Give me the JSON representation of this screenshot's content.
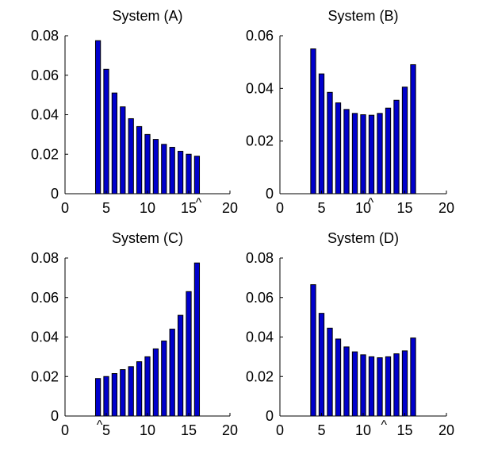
{
  "figure_title": "",
  "colors": {
    "bar_fill": "#0000cc",
    "bar_edge": "#000000",
    "axis": "#000000",
    "background": "#ffffff"
  },
  "chart_data": [
    {
      "type": "bar",
      "title": "System (A)",
      "xlabel": "",
      "ylabel": "",
      "x": [
        4,
        5,
        6,
        7,
        8,
        9,
        10,
        11,
        12,
        13,
        14,
        15,
        16
      ],
      "values": [
        0.0775,
        0.063,
        0.051,
        0.044,
        0.038,
        0.034,
        0.03,
        0.0275,
        0.025,
        0.0235,
        0.0215,
        0.02,
        0.019
      ],
      "xlim": [
        0,
        20
      ],
      "ylim": [
        0,
        0.08
      ],
      "xticks": [
        0,
        5,
        10,
        15,
        20
      ],
      "xtick_labels": [
        "0",
        "5",
        "10",
        "15",
        "20"
      ],
      "yticks": [
        0,
        0.02,
        0.04,
        0.06,
        0.08
      ],
      "ytick_labels": [
        "0",
        "0.02",
        "0.04",
        "0.06",
        "0.08"
      ],
      "marker": {
        "symbol": "^",
        "x": 16.2
      },
      "grid": false,
      "legend": "none"
    },
    {
      "type": "bar",
      "title": "System (B)",
      "xlabel": "",
      "ylabel": "",
      "x": [
        4,
        5,
        6,
        7,
        8,
        9,
        10,
        11,
        12,
        13,
        14,
        15,
        16
      ],
      "values": [
        0.055,
        0.0455,
        0.0385,
        0.0345,
        0.032,
        0.0305,
        0.03,
        0.0298,
        0.0305,
        0.0325,
        0.0355,
        0.0405,
        0.049
      ],
      "xlim": [
        0,
        20
      ],
      "ylim": [
        0,
        0.06
      ],
      "xticks": [
        0,
        5,
        10,
        15,
        20
      ],
      "xtick_labels": [
        "0",
        "5",
        "10",
        "15",
        "20"
      ],
      "yticks": [
        0,
        0.02,
        0.04,
        0.06
      ],
      "ytick_labels": [
        "0",
        "0.02",
        "0.04",
        "0.06"
      ],
      "marker": {
        "symbol": "^",
        "x": 10.9
      },
      "grid": false,
      "legend": "none"
    },
    {
      "type": "bar",
      "title": "System (C)",
      "xlabel": "",
      "ylabel": "",
      "x": [
        4,
        5,
        6,
        7,
        8,
        9,
        10,
        11,
        12,
        13,
        14,
        15,
        16
      ],
      "values": [
        0.019,
        0.02,
        0.0215,
        0.0235,
        0.025,
        0.0275,
        0.03,
        0.034,
        0.038,
        0.044,
        0.051,
        0.063,
        0.0775
      ],
      "xlim": [
        0,
        20
      ],
      "ylim": [
        0,
        0.08
      ],
      "xticks": [
        0,
        5,
        10,
        15,
        20
      ],
      "xtick_labels": [
        "0",
        "5",
        "10",
        "15",
        "20"
      ],
      "yticks": [
        0,
        0.02,
        0.04,
        0.06,
        0.08
      ],
      "ytick_labels": [
        "0",
        "0.02",
        "0.04",
        "0.06",
        "0.08"
      ],
      "marker": {
        "symbol": "^",
        "x": 4.2
      },
      "grid": false,
      "legend": "none"
    },
    {
      "type": "bar",
      "title": "System (D)",
      "xlabel": "",
      "ylabel": "",
      "x": [
        4,
        5,
        6,
        7,
        8,
        9,
        10,
        11,
        12,
        13,
        14,
        15,
        16
      ],
      "values": [
        0.0665,
        0.052,
        0.0445,
        0.039,
        0.035,
        0.0325,
        0.031,
        0.03,
        0.0295,
        0.03,
        0.0315,
        0.033,
        0.0395
      ],
      "xlim": [
        0,
        20
      ],
      "ylim": [
        0,
        0.08
      ],
      "xticks": [
        0,
        5,
        10,
        15,
        20
      ],
      "xtick_labels": [
        "0",
        "5",
        "10",
        "15",
        "20"
      ],
      "yticks": [
        0,
        0.02,
        0.04,
        0.06,
        0.08
      ],
      "ytick_labels": [
        "0",
        "0.02",
        "0.04",
        "0.06",
        "0.08"
      ],
      "marker": {
        "symbol": "^",
        "x": 12.5
      },
      "grid": false,
      "legend": "none"
    }
  ]
}
